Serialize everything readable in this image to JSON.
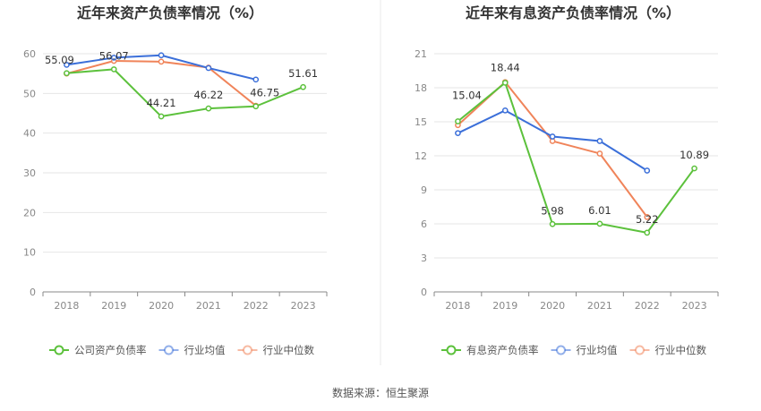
{
  "source_text": "数据来源：恒生聚源",
  "colors": {
    "company": "#5cc13c",
    "average": "#3b6fd9",
    "median": "#f0845a",
    "grid": "#e6e6e6",
    "axis": "#888888"
  },
  "chart_data": [
    {
      "type": "line",
      "title": "近年来资产负债率情况（%）",
      "categories": [
        "2018",
        "2019",
        "2020",
        "2021",
        "2022",
        "2023"
      ],
      "ylim": [
        0,
        60
      ],
      "yticks": [
        0,
        10,
        20,
        30,
        40,
        50,
        60
      ],
      "grid": true,
      "legend_position": "bottom",
      "series": [
        {
          "name": "公司资产负债率",
          "role": "company",
          "values": [
            55.09,
            56.07,
            44.21,
            46.22,
            46.75,
            51.61
          ],
          "labels": [
            "55.09",
            "56.07",
            "44.21",
            "46.22",
            "46.75",
            "51.61"
          ]
        },
        {
          "name": "行业均值",
          "role": "average",
          "values": [
            57.2,
            59.0,
            59.6,
            56.4,
            53.5,
            null
          ]
        },
        {
          "name": "行业中位数",
          "role": "median",
          "values": [
            55.0,
            58.2,
            58.0,
            56.5,
            46.9,
            null
          ]
        }
      ]
    },
    {
      "type": "line",
      "title": "近年来有息资产负债率情况（%）",
      "categories": [
        "2018",
        "2019",
        "2020",
        "2021",
        "2022",
        "2023"
      ],
      "ylim": [
        0,
        21
      ],
      "yticks": [
        0,
        3,
        6,
        9,
        12,
        15,
        18,
        21
      ],
      "grid": true,
      "legend_position": "bottom",
      "series": [
        {
          "name": "有息资产负债率",
          "role": "company",
          "values": [
            15.04,
            18.44,
            5.98,
            6.01,
            5.22,
            10.89
          ],
          "labels": [
            "15.04",
            "18.44",
            "5.98",
            "6.01",
            "5.22",
            "10.89"
          ]
        },
        {
          "name": "行业均值",
          "role": "average",
          "values": [
            14.0,
            16.0,
            13.7,
            13.3,
            10.7,
            null
          ]
        },
        {
          "name": "行业中位数",
          "role": "median",
          "values": [
            14.7,
            18.5,
            13.3,
            12.2,
            6.6,
            null
          ]
        }
      ]
    }
  ]
}
